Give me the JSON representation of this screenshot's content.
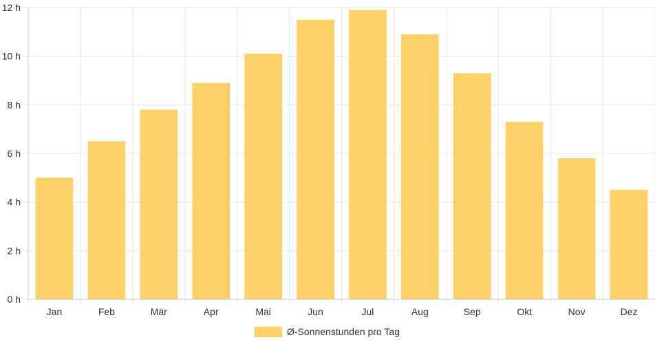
{
  "chart_data": {
    "type": "bar",
    "categories": [
      "Jan",
      "Feb",
      "Mär",
      "Apr",
      "Mai",
      "Jun",
      "Jul",
      "Aug",
      "Sep",
      "Okt",
      "Nov",
      "Dez"
    ],
    "series": [
      {
        "name": "Ø-Sonnenstunden pro Tag",
        "values": [
          5.0,
          6.5,
          7.8,
          8.9,
          10.1,
          11.5,
          11.9,
          10.9,
          9.3,
          7.3,
          5.8,
          4.5
        ]
      }
    ],
    "yticks": [
      "0 h",
      "2 h",
      "4 h",
      "6 h",
      "8 h",
      "10 h",
      "12 h"
    ],
    "ylim": [
      0,
      12
    ],
    "ytick_step": 2,
    "grid": true,
    "legend_position": "bottom",
    "bar_color": "#fdd068",
    "grid_color": "#e6e6e6",
    "axis_color": "#c8c8c8"
  }
}
